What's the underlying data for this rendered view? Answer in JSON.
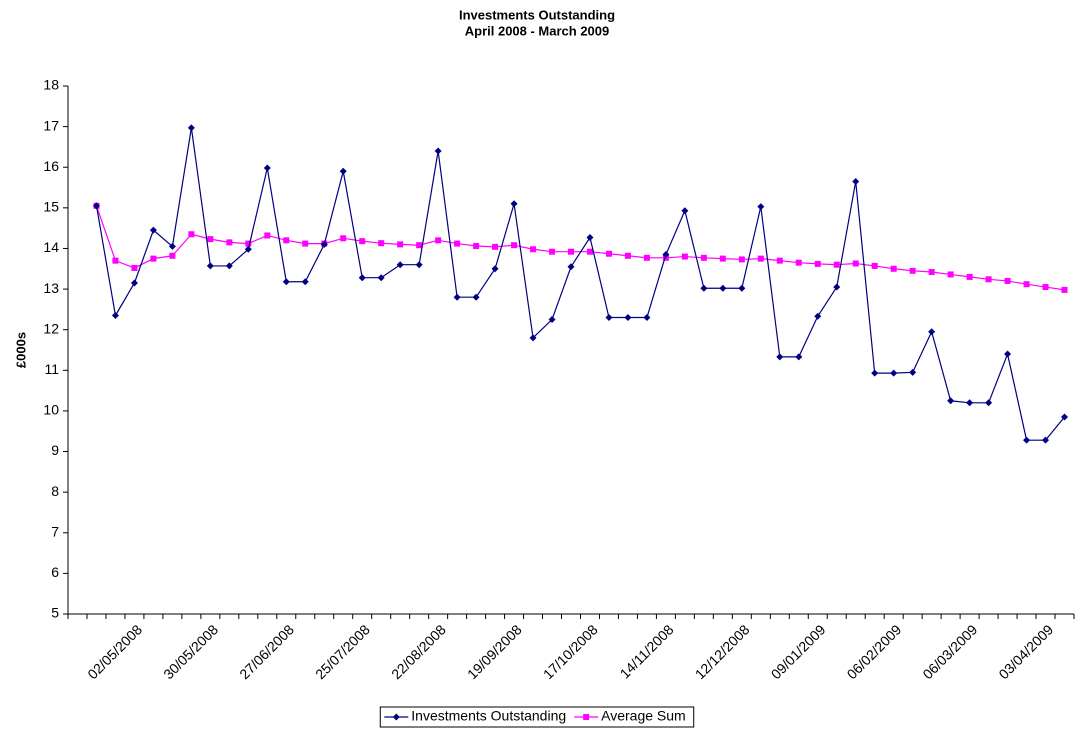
{
  "chart_data": {
    "type": "line",
    "title": "Investments Outstanding",
    "subtitle": "April 2008 - March 2009",
    "y_label": "£000s",
    "categories": [
      null,
      null,
      "02/05/2008",
      null,
      null,
      null,
      "30/05/2008",
      null,
      null,
      null,
      "27/06/2008",
      null,
      null,
      null,
      "25/07/2008",
      null,
      null,
      null,
      "22/08/2008",
      null,
      null,
      null,
      "19/09/2008",
      null,
      null,
      null,
      "17/10/2008",
      null,
      null,
      null,
      "14/11/2008",
      null,
      null,
      null,
      "12/12/2008",
      null,
      null,
      null,
      "09/01/2009",
      null,
      null,
      null,
      "06/02/2009",
      null,
      null,
      null,
      "06/03/2009",
      null,
      null,
      null,
      "03/04/2009",
      null
    ],
    "series": [
      {
        "name": "Investments Outstanding",
        "color": "#000080",
        "marker": "diamond",
        "values": [
          15.05,
          12.35,
          13.15,
          14.45,
          14.05,
          16.97,
          13.57,
          13.57,
          13.98,
          15.98,
          13.18,
          13.18,
          14.1,
          15.9,
          13.28,
          13.28,
          13.6,
          13.6,
          16.4,
          12.8,
          12.8,
          13.5,
          15.1,
          11.8,
          12.25,
          13.55,
          14.27,
          12.3,
          12.3,
          12.3,
          13.85,
          14.93,
          13.02,
          13.02,
          13.02,
          15.03,
          11.33,
          11.33,
          12.33,
          13.05,
          15.65,
          10.93,
          10.93,
          10.95,
          11.95,
          10.25,
          10.2,
          10.2,
          11.4,
          9.28,
          9.28,
          9.85
        ]
      },
      {
        "name": "Average  Sum",
        "color": "#ff00ff",
        "marker": "square",
        "values": [
          15.05,
          13.7,
          13.52,
          13.75,
          13.82,
          14.35,
          14.23,
          14.15,
          14.12,
          14.32,
          14.2,
          14.12,
          14.12,
          14.25,
          14.18,
          14.13,
          14.1,
          14.08,
          14.2,
          14.12,
          14.06,
          14.04,
          14.08,
          13.98,
          13.92,
          13.92,
          13.92,
          13.87,
          13.82,
          13.77,
          13.77,
          13.8,
          13.77,
          13.75,
          13.73,
          13.75,
          13.7,
          13.65,
          13.62,
          13.6,
          13.63,
          13.57,
          13.5,
          13.45,
          13.42,
          13.36,
          13.3,
          13.24,
          13.2,
          13.12,
          13.05,
          12.98
        ]
      }
    ],
    "ylim": [
      5,
      18
    ],
    "yticks": [
      5,
      6,
      7,
      8,
      9,
      10,
      11,
      12,
      13,
      14,
      15,
      16,
      17,
      18
    ],
    "grid": false,
    "legend": "bottom"
  }
}
